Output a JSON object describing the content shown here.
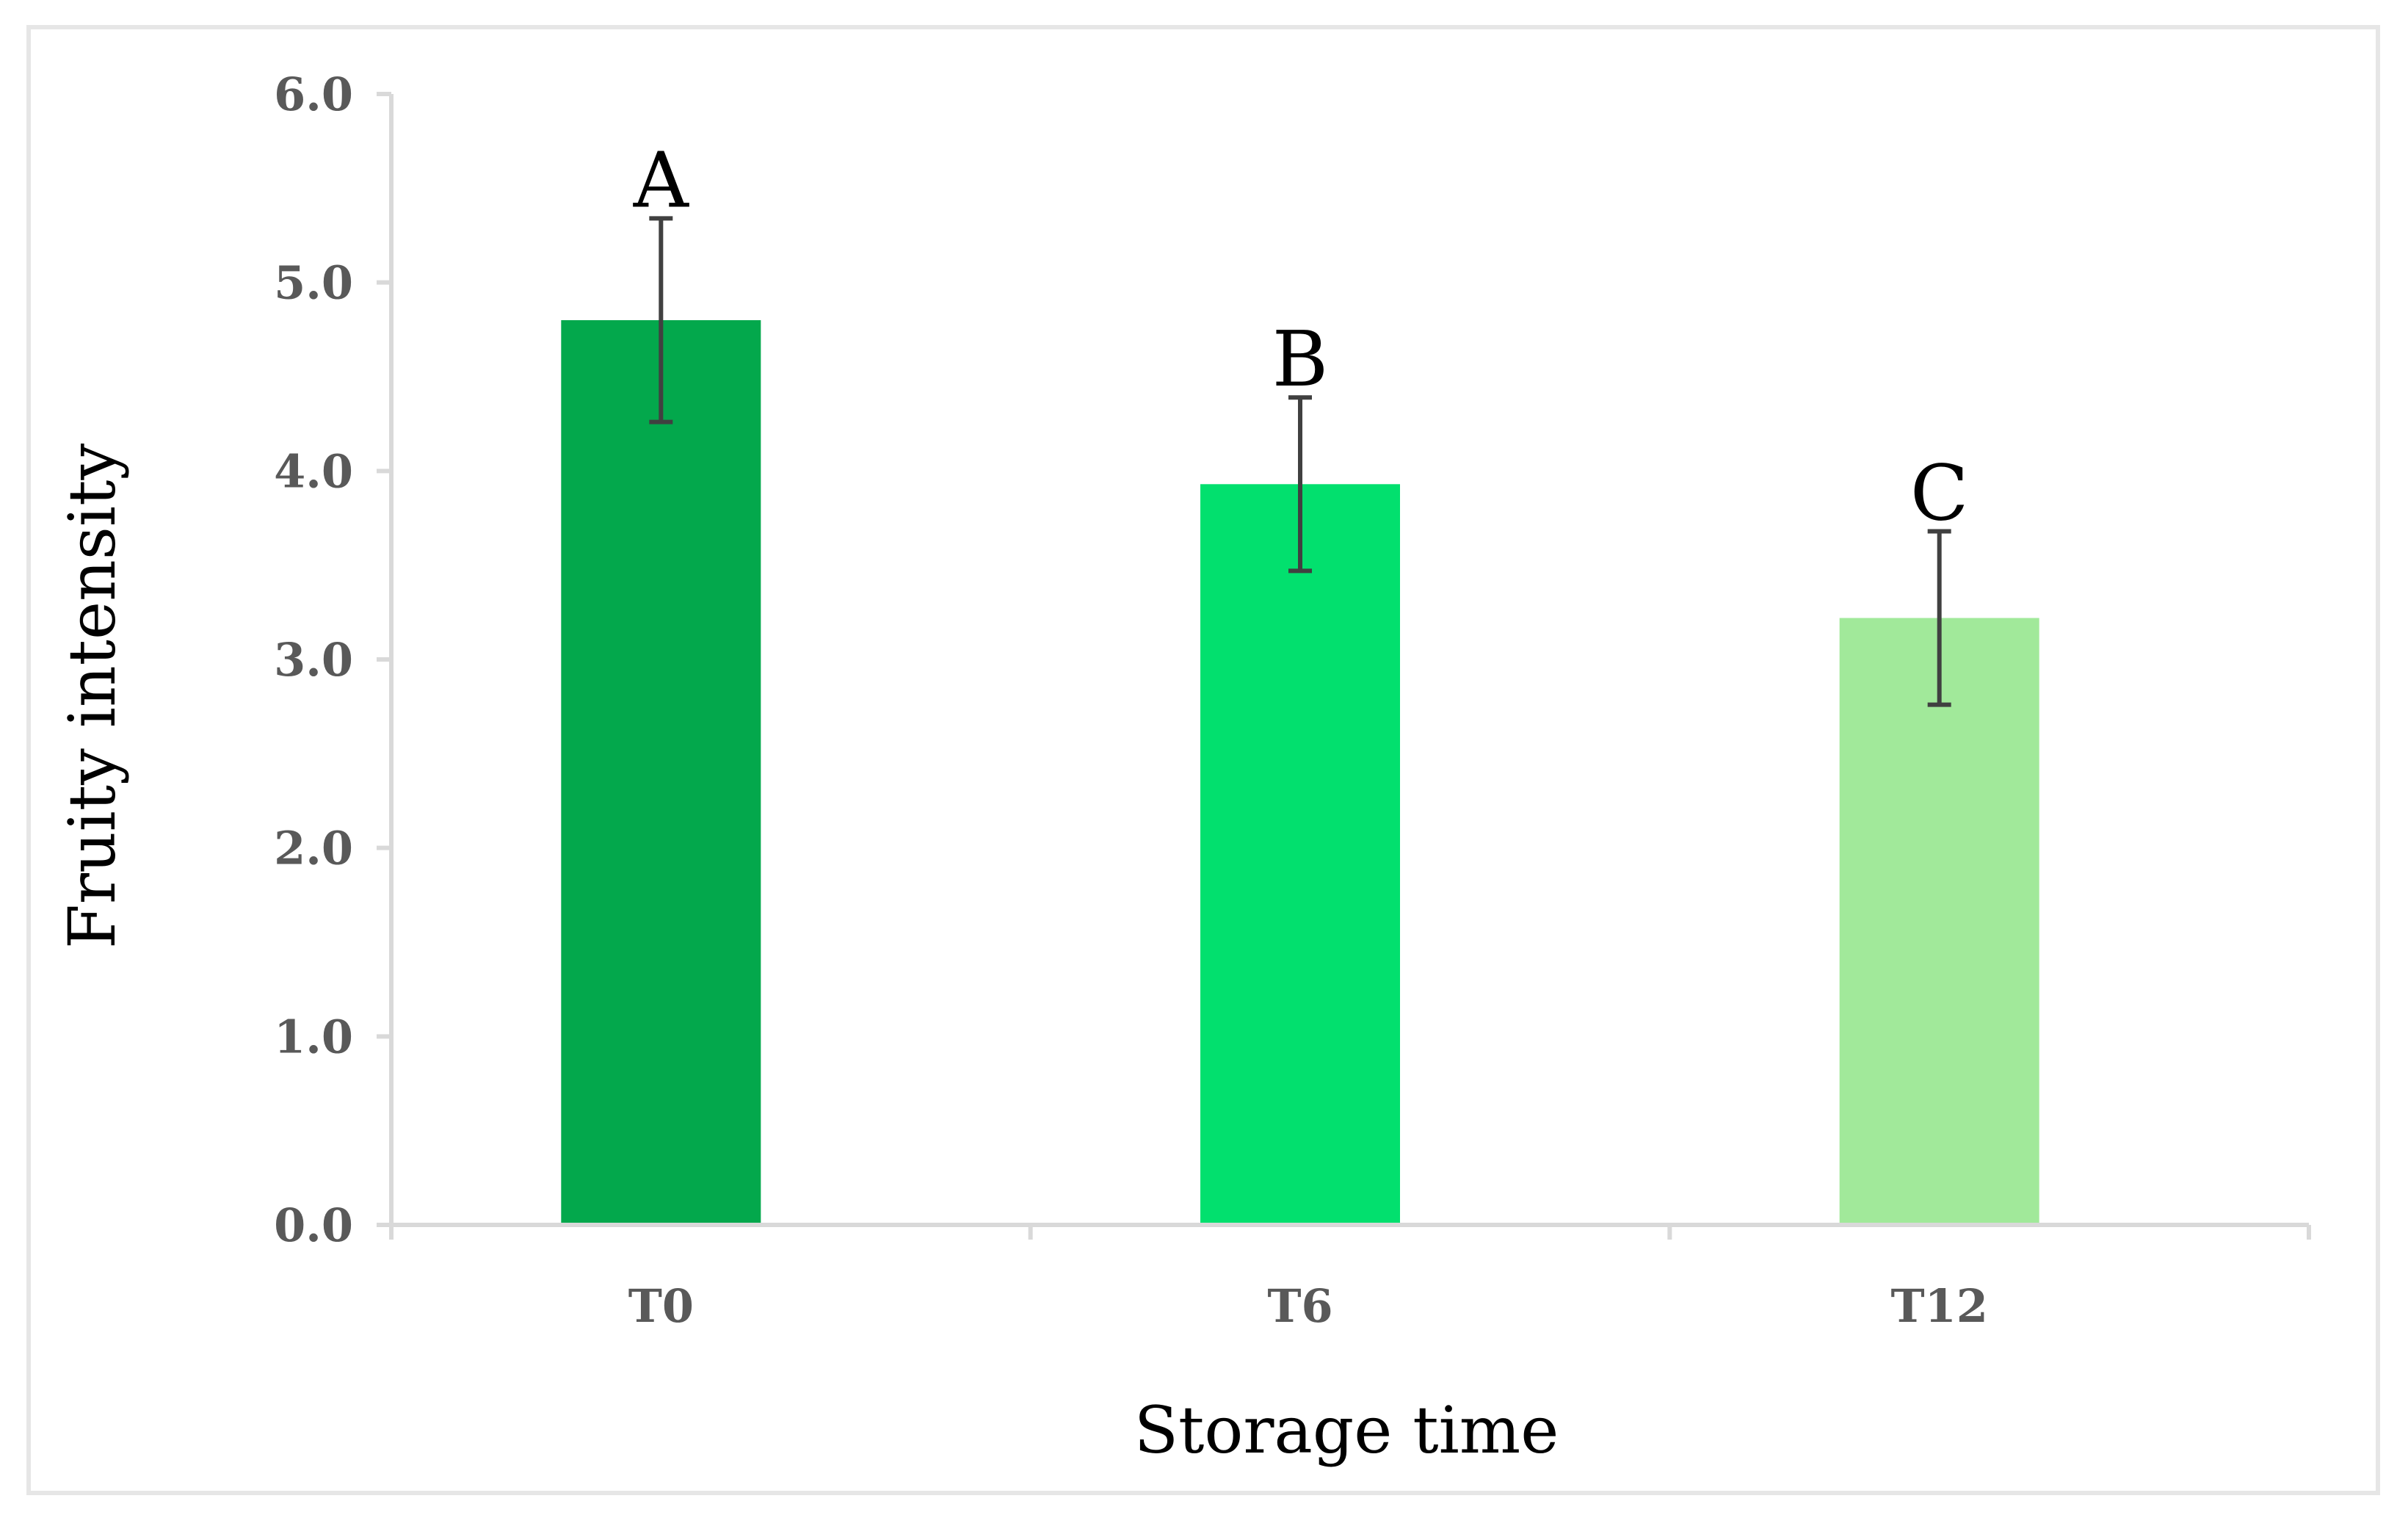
{
  "chart_data": {
    "type": "bar",
    "title": "",
    "xlabel": "Storage time",
    "ylabel": "Fruity intensity",
    "categories": [
      "T0",
      "T6",
      "T12"
    ],
    "values": [
      4.8,
      3.93,
      3.22
    ],
    "error": [
      0.54,
      0.46,
      0.46
    ],
    "significance_labels": [
      "A",
      "B",
      "C"
    ],
    "bar_colors": [
      "#03a84c",
      "#02e06e",
      "#a1e99a"
    ],
    "ylim": [
      0,
      6
    ],
    "yticks": [
      "0.0",
      "1.0",
      "2.0",
      "3.0",
      "4.0",
      "5.0",
      "6.0"
    ],
    "grid": false,
    "legend": "none"
  }
}
